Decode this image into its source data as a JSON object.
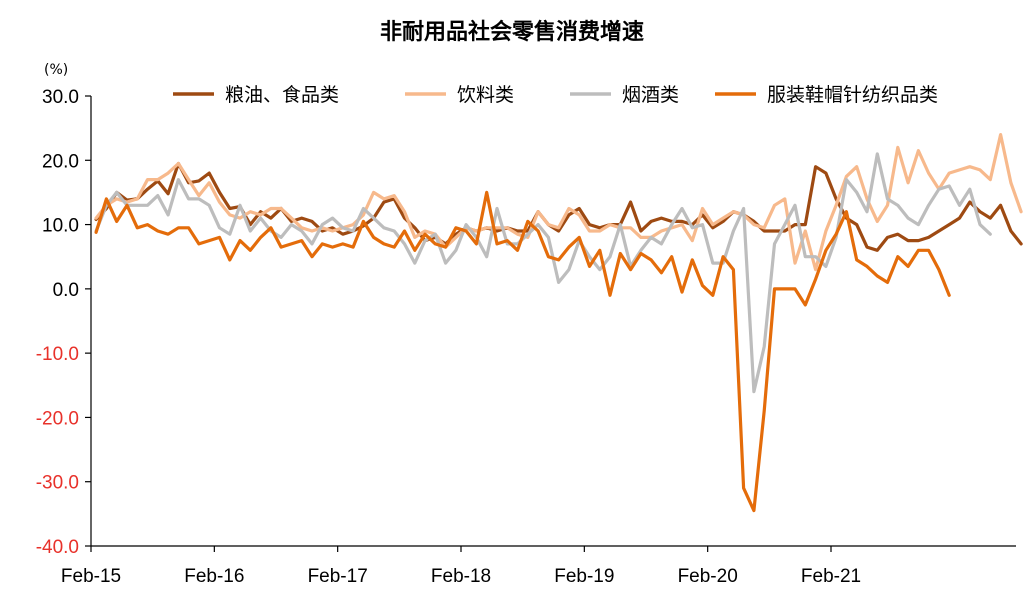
{
  "chart_data": {
    "type": "line",
    "title": "非耐用品社会零售消费增速",
    "unit_label": "(%)",
    "ylim": [
      -40,
      30
    ],
    "y_ticks": [
      "30.0",
      "20.0",
      "10.0",
      "0.0",
      "-10.0",
      "-20.0",
      "-30.0",
      "-40.0"
    ],
    "x_ticks": [
      "Feb-15",
      "Feb-16",
      "Feb-17",
      "Feb-18",
      "Feb-19",
      "Feb-20",
      "Feb-21"
    ],
    "x_start": "2015-02",
    "legend_position": "top",
    "colors": {
      "positive_tick": "#000000",
      "negative_tick": "#e8312a",
      "axis": "#000000"
    },
    "series": [
      {
        "name": "粮油、食品类",
        "color": "#9e4a12",
        "values": [
          10.8,
          12.5,
          15.0,
          13.8,
          14.0,
          15.5,
          16.8,
          14.8,
          19.5,
          16.5,
          16.8,
          18.0,
          15.0,
          12.5,
          12.8,
          10.0,
          12.0,
          11.0,
          12.5,
          10.5,
          11.0,
          10.5,
          9.0,
          9.5,
          8.5,
          9.0,
          9.8,
          11.0,
          13.5,
          14.0,
          11.0,
          9.5,
          7.5,
          8.0,
          7.0,
          8.5,
          9.5,
          9.0,
          9.5,
          9.0,
          9.5,
          9.0,
          9.0,
          12.0,
          10.0,
          9.0,
          11.5,
          12.5,
          10.0,
          9.5,
          10.0,
          10.0,
          13.5,
          9.0,
          10.5,
          11.0,
          10.5,
          10.5,
          10.0,
          11.5,
          9.5,
          10.5,
          12.0,
          11.5,
          10.5,
          9.0,
          9.0,
          9.0,
          10.0,
          10.0,
          19.0,
          18.0,
          14.0,
          11.0,
          10.0,
          6.5,
          6.0,
          8.0,
          8.5,
          7.5,
          7.5,
          8.0,
          9.0,
          10.0,
          11.0,
          13.5,
          12.0,
          11.0,
          13.0,
          9.0,
          7.0
        ]
      },
      {
        "name": "饮料类",
        "color": "#f7b98c",
        "values": [
          11.0,
          13.0,
          14.0,
          13.5,
          14.0,
          17.0,
          17.0,
          18.0,
          19.5,
          17.0,
          14.5,
          16.5,
          13.5,
          11.5,
          11.0,
          12.0,
          11.5,
          12.5,
          12.5,
          11.0,
          9.5,
          9.0,
          9.5,
          9.0,
          9.5,
          10.0,
          11.5,
          15.0,
          14.0,
          14.5,
          12.0,
          8.0,
          9.0,
          8.5,
          6.5,
          8.0,
          9.5,
          9.0,
          9.5,
          9.5,
          9.5,
          8.5,
          8.0,
          12.0,
          10.0,
          9.5,
          12.5,
          11.5,
          9.0,
          9.0,
          10.0,
          9.5,
          9.5,
          8.0,
          8.0,
          9.0,
          9.5,
          10.0,
          7.5,
          12.5,
          10.0,
          11.0,
          12.0,
          11.5,
          10.0,
          9.5,
          13.0,
          14.0,
          4.0,
          9.0,
          3.0,
          9.0,
          13.0,
          17.5,
          19.0,
          14.0,
          10.5,
          13.0,
          22.0,
          16.5,
          21.5,
          18.0,
          15.5,
          18.0,
          18.5,
          19.0,
          18.5,
          17.0,
          24.0,
          16.5,
          12.0
        ]
      },
      {
        "name": "烟酒类",
        "color": "#bdbdbd",
        "values": [
          9.0,
          13.0,
          15.0,
          13.0,
          13.0,
          13.0,
          14.5,
          11.5,
          17.0,
          14.0,
          14.0,
          13.0,
          9.5,
          8.5,
          13.0,
          9.0,
          11.0,
          9.0,
          8.0,
          10.0,
          9.0,
          7.0,
          10.0,
          11.0,
          9.5,
          9.0,
          12.5,
          11.0,
          9.5,
          9.0,
          7.0,
          4.0,
          7.5,
          8.5,
          4.0,
          6.0,
          10.0,
          8.0,
          5.0,
          12.5,
          7.0,
          7.0,
          8.5,
          10.0,
          8.0,
          1.0,
          3.0,
          7.5,
          5.0,
          3.0,
          5.0,
          10.0,
          3.5,
          6.0,
          8.0,
          7.0,
          10.0,
          12.5,
          9.5,
          10.0,
          4.0,
          4.0,
          9.0,
          12.5,
          -16.0,
          -9.0,
          7.0,
          10.0,
          13.0,
          5.0,
          5.0,
          3.5,
          8.0,
          17.0,
          15.0,
          12.0,
          21.0,
          14.0,
          13.0,
          11.0,
          10.0,
          13.0,
          15.5,
          16.0,
          13.0,
          15.5,
          10.0,
          8.5
        ]
      },
      {
        "name": "服装鞋帽针纺织品类",
        "color": "#e46c0a",
        "values": [
          8.8,
          14.0,
          10.5,
          13.0,
          9.5,
          10.0,
          9.0,
          8.5,
          9.5,
          9.5,
          7.0,
          7.5,
          8.0,
          4.5,
          7.5,
          6.0,
          8.0,
          9.5,
          6.5,
          7.0,
          7.5,
          5.0,
          7.0,
          6.5,
          7.0,
          6.5,
          10.5,
          8.0,
          7.0,
          6.5,
          9.0,
          6.0,
          8.5,
          7.0,
          6.5,
          9.5,
          9.0,
          7.0,
          15.0,
          7.0,
          7.5,
          6.0,
          10.5,
          9.0,
          5.0,
          4.5,
          6.5,
          8.0,
          3.5,
          6.0,
          -1.0,
          5.5,
          3.0,
          5.5,
          4.5,
          2.5,
          5.0,
          -0.5,
          4.5,
          0.5,
          -1.0,
          5.0,
          3.0,
          -31.0,
          -34.5,
          -19.0,
          0.0,
          0.0,
          0.0,
          -2.5,
          1.5,
          6.0,
          8.5,
          12.0,
          4.5,
          3.5,
          2.0,
          1.0,
          5.0,
          3.5,
          6.0,
          6.0,
          3.0,
          -1.0
        ]
      }
    ]
  }
}
